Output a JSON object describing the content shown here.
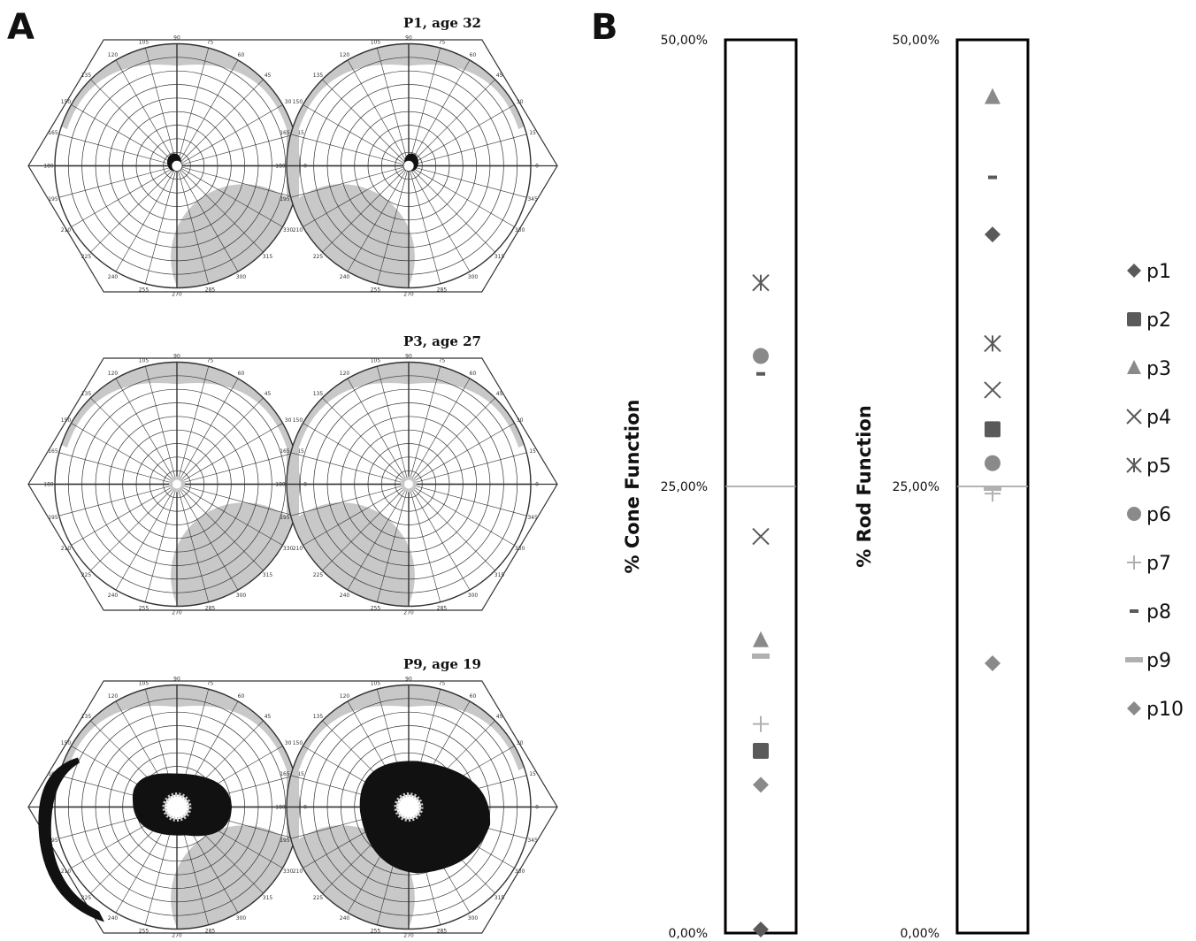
{
  "panels": {
    "a_label": "A",
    "b_label": "B"
  },
  "visual_fields": [
    {
      "title": "P1, age 32",
      "scotoma": "central-small"
    },
    {
      "title": "P3, age 27",
      "scotoma": "none"
    },
    {
      "title": "P9, age 19",
      "scotoma": "ring"
    }
  ],
  "perimeter_degrees": [
    "0",
    "15",
    "30",
    "45",
    "60",
    "75",
    "90",
    "105",
    "120",
    "135",
    "150",
    "165",
    "180",
    "195",
    "210",
    "225",
    "240",
    "255",
    "270",
    "285",
    "300",
    "315",
    "330",
    "345"
  ],
  "colors": {
    "grid": "#333333",
    "field_shade": "#c8c8c8",
    "scotoma": "#111111",
    "marker_dark": "#5a5a5a",
    "marker_mid": "#8a8a8a",
    "marker_light": "#b0b0b0",
    "midline": "#9a9a9a"
  },
  "chart_data": [
    {
      "type": "scatter",
      "ylabel": "% Cone Function",
      "ylim": [
        0,
        50
      ],
      "yticks": [
        "0,00%",
        "25,00%",
        "50,00%"
      ],
      "midline": 25,
      "series": [
        {
          "name": "p1",
          "marker": "diamond",
          "value": 0.2
        },
        {
          "name": "p2",
          "marker": "square",
          "value": 10.2
        },
        {
          "name": "p3",
          "marker": "triangle",
          "value": 16.4
        },
        {
          "name": "p4",
          "marker": "x",
          "value": 22.2
        },
        {
          "name": "p5",
          "marker": "asterisk",
          "value": 36.4
        },
        {
          "name": "p6",
          "marker": "circle",
          "value": 32.3
        },
        {
          "name": "p7",
          "marker": "plus",
          "value": 11.7
        },
        {
          "name": "p8",
          "marker": "dash",
          "value": 31.3
        },
        {
          "name": "p9",
          "marker": "dash-light",
          "value": 15.5
        },
        {
          "name": "p10",
          "marker": "diamond-light",
          "value": 8.3
        }
      ]
    },
    {
      "type": "scatter",
      "ylabel": "% Rod Function",
      "ylim": [
        0,
        50
      ],
      "yticks": [
        "0,00%",
        "25,00%",
        "50,00%"
      ],
      "midline": 25,
      "series": [
        {
          "name": "p1",
          "marker": "diamond",
          "value": 39.1
        },
        {
          "name": "p2",
          "marker": "square",
          "value": 28.2
        },
        {
          "name": "p3",
          "marker": "triangle",
          "value": 46.8
        },
        {
          "name": "p4",
          "marker": "x",
          "value": 30.4
        },
        {
          "name": "p5",
          "marker": "asterisk",
          "value": 33.0
        },
        {
          "name": "p6",
          "marker": "circle",
          "value": 26.3
        },
        {
          "name": "p7",
          "marker": "plus",
          "value": 24.6
        },
        {
          "name": "p8",
          "marker": "dash",
          "value": 42.3
        },
        {
          "name": "p9",
          "marker": "dash-light",
          "value": 24.9
        },
        {
          "name": "p10",
          "marker": "diamond-light",
          "value": 15.1
        }
      ]
    }
  ],
  "legend": [
    "p1",
    "p2",
    "p3",
    "p4",
    "p5",
    "p6",
    "p7",
    "p8",
    "p9",
    "p10"
  ]
}
